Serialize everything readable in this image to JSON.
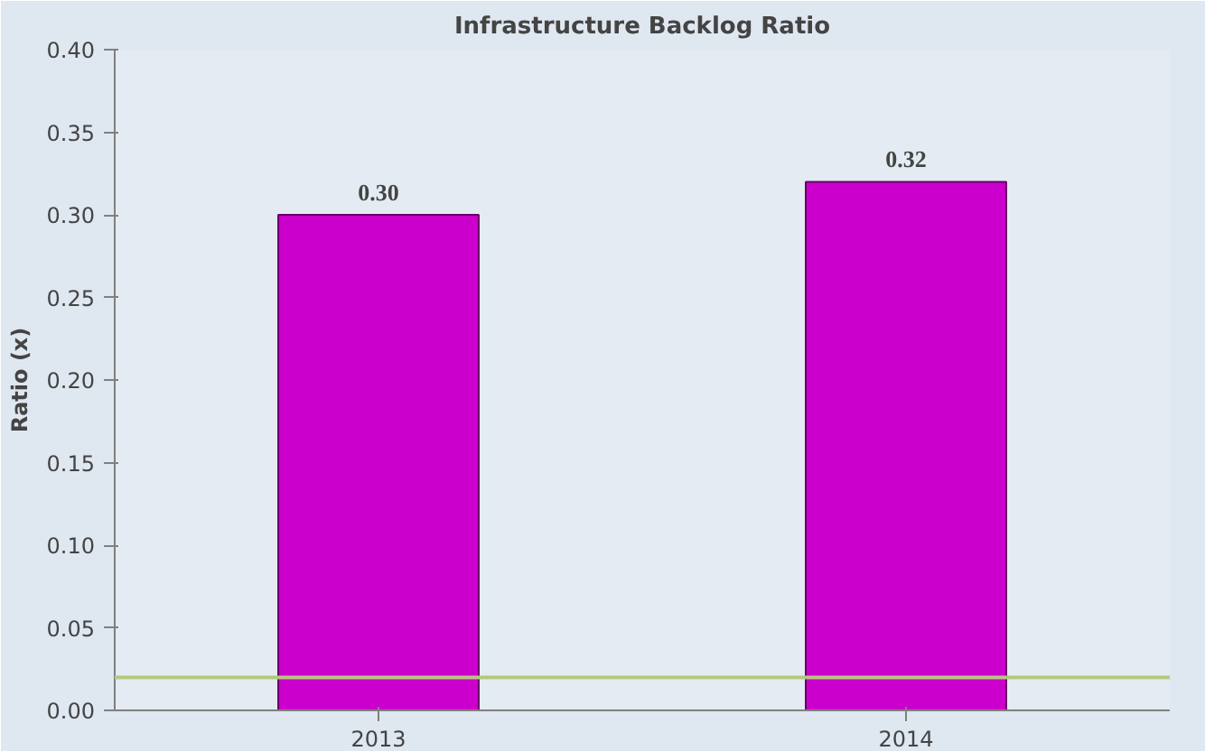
{
  "chart_data": {
    "type": "bar",
    "title": "Infrastructure Backlog Ratio",
    "ylabel": "Ratio (x)",
    "categories": [
      "2013",
      "2014"
    ],
    "values": [
      0.3,
      0.32
    ],
    "color": "#cc00cc",
    "ylim": [
      0,
      0.4
    ],
    "yticks": [
      {
        "value": 0,
        "label": "0.00"
      },
      {
        "value": 0.05,
        "label": "0.05"
      },
      {
        "value": 0.1,
        "label": "0.10"
      },
      {
        "value": 0.15,
        "label": "0.15"
      },
      {
        "value": 0.2,
        "label": "0.20"
      },
      {
        "value": 0.25,
        "label": "0.25"
      },
      {
        "value": 0.3,
        "label": "0.30"
      },
      {
        "value": 0.35,
        "label": "0.35"
      },
      {
        "value": 0.4,
        "label": "0.40"
      }
    ],
    "value_labels": [
      "0.30",
      "0.32"
    ],
    "ref_lines": [
      {
        "axis": "y",
        "value": 0.02,
        "label": null,
        "color": "#b5c97a"
      }
    ],
    "grid": false
  }
}
